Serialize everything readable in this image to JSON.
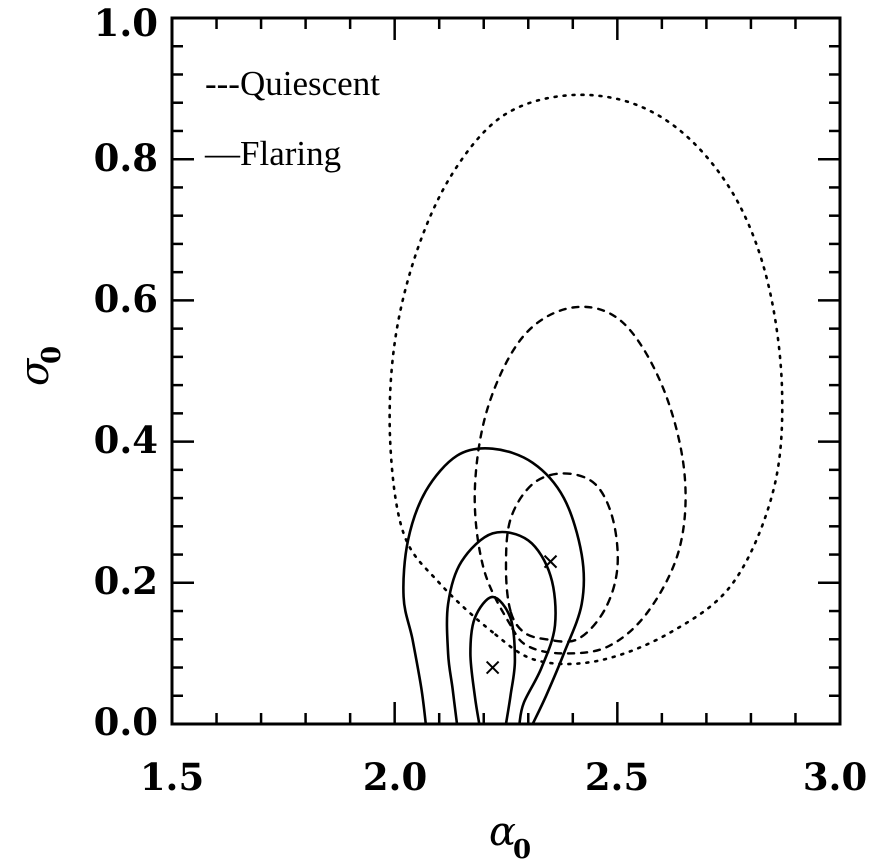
{
  "chart_data": {
    "type": "contour",
    "xlim": [
      1.5,
      3.0
    ],
    "ylim": [
      0.0,
      1.0
    ],
    "xticks": [
      "1.5",
      "2.0",
      "2.5",
      "3.0"
    ],
    "yticks": [
      "0.0",
      "0.2",
      "0.4",
      "0.6",
      "0.8",
      "1.0"
    ],
    "xlabel": {
      "symbol": "α",
      "subscript": "0"
    },
    "ylabel": {
      "symbol": "σ",
      "subscript": "0"
    },
    "legend": [
      "---Quiescent",
      "—Flaring"
    ],
    "series": [
      {
        "name": "Quiescent",
        "style": "dashed",
        "best_fit": [
          2.35,
          0.23
        ],
        "contours": [
          [
            [
              2.26,
              0.16
            ],
            [
              2.25,
              0.22
            ],
            [
              2.26,
              0.29
            ],
            [
              2.31,
              0.34
            ],
            [
              2.38,
              0.355
            ],
            [
              2.45,
              0.34
            ],
            [
              2.49,
              0.29
            ],
            [
              2.5,
              0.22
            ],
            [
              2.47,
              0.16
            ],
            [
              2.41,
              0.12
            ],
            [
              2.34,
              0.12
            ],
            [
              2.29,
              0.13
            ],
            [
              2.26,
              0.16
            ]
          ],
          [
            [
              2.26,
              0.14
            ],
            [
              2.2,
              0.22
            ],
            [
              2.18,
              0.33
            ],
            [
              2.21,
              0.45
            ],
            [
              2.29,
              0.55
            ],
            [
              2.4,
              0.59
            ],
            [
              2.51,
              0.57
            ],
            [
              2.6,
              0.48
            ],
            [
              2.65,
              0.36
            ],
            [
              2.64,
              0.25
            ],
            [
              2.57,
              0.16
            ],
            [
              2.48,
              0.11
            ],
            [
              2.38,
              0.1
            ],
            [
              2.3,
              0.11
            ],
            [
              2.26,
              0.14
            ]
          ],
          [
            [
              2.22,
              0.13
            ],
            [
              2.1,
              0.2
            ],
            [
              2.02,
              0.27
            ],
            [
              1.99,
              0.4
            ],
            [
              2.0,
              0.54
            ],
            [
              2.05,
              0.67
            ],
            [
              2.13,
              0.78
            ],
            [
              2.24,
              0.86
            ],
            [
              2.38,
              0.89
            ],
            [
              2.53,
              0.88
            ],
            [
              2.66,
              0.83
            ],
            [
              2.77,
              0.74
            ],
            [
              2.84,
              0.62
            ],
            [
              2.87,
              0.47
            ],
            [
              2.85,
              0.33
            ],
            [
              2.76,
              0.2
            ],
            [
              2.62,
              0.13
            ],
            [
              2.46,
              0.09
            ],
            [
              2.32,
              0.09
            ],
            [
              2.22,
              0.13
            ]
          ]
        ]
      },
      {
        "name": "Flaring",
        "style": "solid",
        "best_fit": [
          2.22,
          0.08
        ],
        "contours": [
          [
            [
              2.19,
              0.0
            ],
            [
              2.18,
              0.04
            ],
            [
              2.17,
              0.1
            ],
            [
              2.18,
              0.15
            ],
            [
              2.22,
              0.18
            ],
            [
              2.26,
              0.15
            ],
            [
              2.27,
              0.09
            ],
            [
              2.26,
              0.04
            ],
            [
              2.25,
              0.0
            ]
          ],
          [
            [
              2.14,
              0.0
            ],
            [
              2.13,
              0.05
            ],
            [
              2.12,
              0.1
            ],
            [
              2.12,
              0.17
            ],
            [
              2.15,
              0.23
            ],
            [
              2.22,
              0.27
            ],
            [
              2.3,
              0.26
            ],
            [
              2.35,
              0.21
            ],
            [
              2.36,
              0.14
            ],
            [
              2.33,
              0.08
            ],
            [
              2.29,
              0.03
            ],
            [
              2.28,
              0.0
            ]
          ],
          [
            [
              2.07,
              0.0
            ],
            [
              2.06,
              0.05
            ],
            [
              2.04,
              0.12
            ],
            [
              2.02,
              0.18
            ],
            [
              2.03,
              0.26
            ],
            [
              2.07,
              0.33
            ],
            [
              2.14,
              0.38
            ],
            [
              2.22,
              0.39
            ],
            [
              2.31,
              0.37
            ],
            [
              2.38,
              0.32
            ],
            [
              2.42,
              0.24
            ],
            [
              2.42,
              0.17
            ],
            [
              2.38,
              0.1
            ],
            [
              2.34,
              0.04
            ],
            [
              2.31,
              0.0
            ]
          ]
        ]
      }
    ],
    "grid": false
  }
}
